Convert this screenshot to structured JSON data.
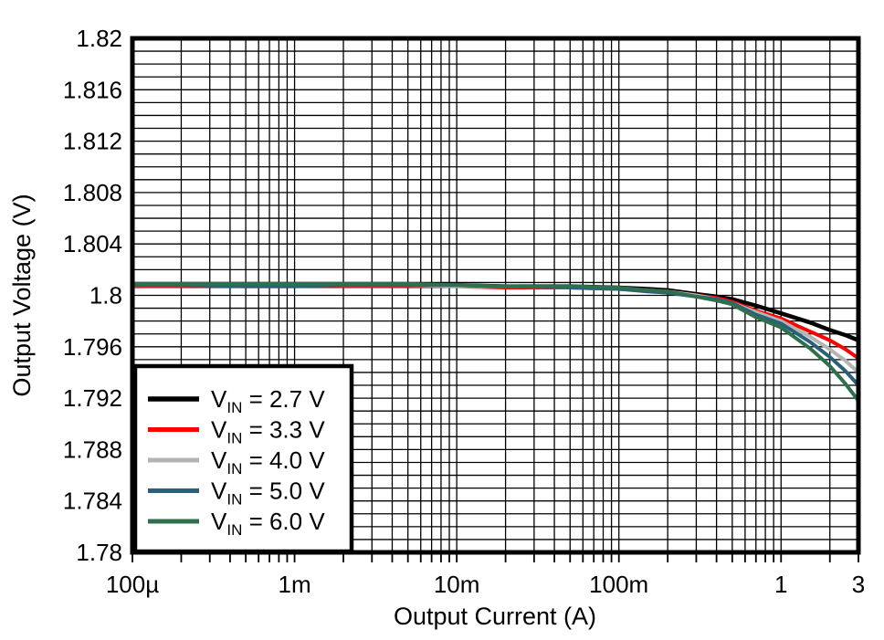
{
  "figure": {
    "background": "#ffffff",
    "text_color": "#000000"
  },
  "chart_data": {
    "type": "line",
    "title": "",
    "xlabel": "Output Current (A)",
    "ylabel": "Output Voltage (V)",
    "x_scale": "log",
    "y_scale": "linear",
    "xlim": [
      0.0001,
      3
    ],
    "ylim": [
      1.78,
      1.82
    ],
    "y_minor_step": 0.001,
    "y_major_step": 0.004,
    "grid": "on-both-minor-and-major",
    "grid_color": "#000000",
    "spine_color": "#000000",
    "x_ticks": [
      {
        "value": 0.0001,
        "label": "100µ"
      },
      {
        "value": 0.001,
        "label": "1m"
      },
      {
        "value": 0.01,
        "label": "10m"
      },
      {
        "value": 0.1,
        "label": "100m"
      },
      {
        "value": 1,
        "label": "1"
      },
      {
        "value": 3,
        "label": "3"
      }
    ],
    "y_ticks": [
      {
        "value": 1.82,
        "label": "1.82"
      },
      {
        "value": 1.816,
        "label": "1.816"
      },
      {
        "value": 1.812,
        "label": "1.812"
      },
      {
        "value": 1.808,
        "label": "1.808"
      },
      {
        "value": 1.804,
        "label": "1.804"
      },
      {
        "value": 1.8,
        "label": "1.8"
      },
      {
        "value": 1.796,
        "label": "1.796"
      },
      {
        "value": 1.792,
        "label": "1.792"
      },
      {
        "value": 1.788,
        "label": "1.788"
      },
      {
        "value": 1.784,
        "label": "1.784"
      },
      {
        "value": 1.78,
        "label": "1.78"
      }
    ],
    "x": [
      0.0001,
      0.0002,
      0.0005,
      0.001,
      0.002,
      0.005,
      0.01,
      0.02,
      0.05,
      0.1,
      0.15,
      0.2,
      0.3,
      0.4,
      0.5,
      0.7,
      1.0,
      1.5,
      2.0,
      2.5,
      3.0
    ],
    "series": [
      {
        "name": "VIN = 2.7 V",
        "legend": {
          "main": "V",
          "sub": "IN",
          "rest": " = 2.7 V"
        },
        "color": "#000000",
        "stroke_width": 4.5,
        "values": [
          1.8008,
          1.8008,
          1.8008,
          1.8008,
          1.8008,
          1.8008,
          1.8008,
          1.8007,
          1.8007,
          1.8006,
          1.8005,
          1.8004,
          1.8001,
          1.7999,
          1.7997,
          1.7992,
          1.7986,
          1.7979,
          1.7973,
          1.7969,
          1.7965
        ]
      },
      {
        "name": "VIN = 3.3 V",
        "legend": {
          "main": "V",
          "sub": "IN",
          "rest": " = 3.3 V"
        },
        "color": "#ff0000",
        "stroke_width": 4,
        "values": [
          1.8007,
          1.8007,
          1.8007,
          1.8007,
          1.8007,
          1.8007,
          1.8007,
          1.8006,
          1.8006,
          1.8005,
          1.8004,
          1.8003,
          1.8,
          1.7998,
          1.7995,
          1.7988,
          1.7982,
          1.7972,
          1.7965,
          1.7958,
          1.7951
        ]
      },
      {
        "name": "VIN = 4.0 V",
        "legend": {
          "main": "V",
          "sub": "IN",
          "rest": " = 4.0 V"
        },
        "color": "#b3b5b4",
        "stroke_width": 4,
        "values": [
          1.8008,
          1.8008,
          1.8008,
          1.8008,
          1.8008,
          1.8008,
          1.8007,
          1.8007,
          1.8006,
          1.8005,
          1.8004,
          1.8003,
          1.8,
          1.7997,
          1.7994,
          1.7987,
          1.798,
          1.7968,
          1.7958,
          1.7949,
          1.794
        ]
      },
      {
        "name": "VIN = 5.0 V",
        "legend": {
          "main": "V",
          "sub": "IN",
          "rest": " = 5.0 V"
        },
        "color": "#2a607c",
        "stroke_width": 4,
        "values": [
          1.8008,
          1.8008,
          1.8007,
          1.8007,
          1.8008,
          1.8008,
          1.8008,
          1.8007,
          1.8006,
          1.8005,
          1.8003,
          1.8002,
          1.7999,
          1.7997,
          1.7994,
          1.7985,
          1.7978,
          1.7964,
          1.7952,
          1.7941,
          1.793
        ]
      },
      {
        "name": "VIN = 6.0 V",
        "legend": {
          "main": "V",
          "sub": "IN",
          "rest": " = 6.0 V"
        },
        "color": "#2e6f4e",
        "stroke_width": 4,
        "values": [
          1.8009,
          1.8009,
          1.8009,
          1.8009,
          1.8009,
          1.8009,
          1.8008,
          1.8007,
          1.8007,
          1.8006,
          1.8004,
          1.8003,
          1.7999,
          1.7996,
          1.7993,
          1.7983,
          1.7975,
          1.7959,
          1.7945,
          1.7931,
          1.7918
        ]
      }
    ],
    "legend": {
      "position": "lower-left",
      "background": "#ffffff",
      "border_color": "#000000"
    }
  }
}
